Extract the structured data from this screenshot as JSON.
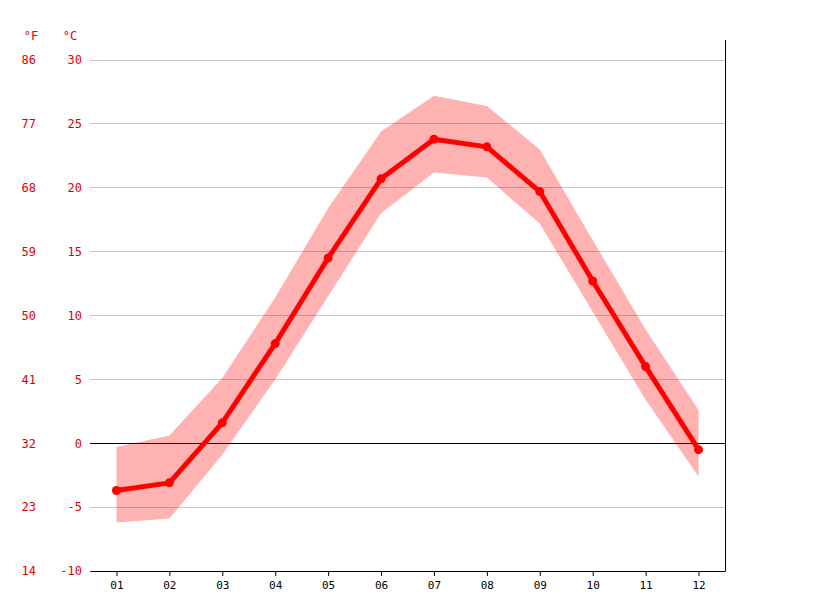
{
  "chart_data": {
    "type": "line",
    "x": [
      1,
      2,
      3,
      4,
      5,
      6,
      7,
      8,
      9,
      10,
      11,
      12
    ],
    "xlim": [
      0.5,
      12.5
    ],
    "xticks": [
      {
        "value": 1,
        "label": "01"
      },
      {
        "value": 2,
        "label": "02"
      },
      {
        "value": 3,
        "label": "03"
      },
      {
        "value": 4,
        "label": "04"
      },
      {
        "value": 5,
        "label": "05"
      },
      {
        "value": 6,
        "label": "06"
      },
      {
        "value": 7,
        "label": "07"
      },
      {
        "value": 8,
        "label": "08"
      },
      {
        "value": 9,
        "label": "09"
      },
      {
        "value": 10,
        "label": "10"
      },
      {
        "value": 11,
        "label": "11"
      },
      {
        "value": 12,
        "label": "12"
      }
    ],
    "ylim": [
      -10,
      30
    ],
    "yticks": [
      -10,
      -5,
      0,
      5,
      10,
      15,
      20,
      25,
      30
    ],
    "y_label": "°C",
    "y2lim": [
      14,
      86
    ],
    "y2ticks": [
      14,
      23,
      32,
      41,
      50,
      59,
      68,
      77,
      86
    ],
    "y2_label": "°F",
    "grid": true,
    "series": [
      {
        "color": "#ff0000",
        "marker": "circle",
        "values": [
          -3.7,
          -3.1,
          1.6,
          7.8,
          14.5,
          20.7,
          23.8,
          23.2,
          19.7,
          12.7,
          6.0,
          -0.5
        ],
        "low": [
          -6.2,
          -5.9,
          -0.9,
          5.0,
          11.5,
          18.0,
          21.2,
          20.8,
          17.2,
          10.3,
          3.4,
          -2.6
        ],
        "high": [
          -0.3,
          0.6,
          5.1,
          11.4,
          18.4,
          24.4,
          27.2,
          26.4,
          23.0,
          15.9,
          8.9,
          2.6
        ]
      }
    ]
  }
}
